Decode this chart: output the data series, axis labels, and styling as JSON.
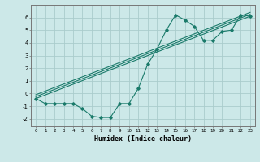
{
  "bg_color": "#cce8e8",
  "grid_color": "#aacccc",
  "line_color": "#1a7a6a",
  "xlabel": "Humidex (Indice chaleur)",
  "ylabel_ticks": [
    -2,
    -1,
    0,
    1,
    2,
    3,
    4,
    5,
    6
  ],
  "xlim": [
    -0.5,
    23.5
  ],
  "ylim": [
    -2.6,
    7.0
  ],
  "xticks": [
    0,
    1,
    2,
    3,
    4,
    5,
    6,
    7,
    8,
    9,
    10,
    11,
    12,
    13,
    14,
    15,
    16,
    17,
    18,
    19,
    20,
    21,
    22,
    23
  ],
  "series": [
    [
      0,
      -0.4
    ],
    [
      1,
      -0.8
    ],
    [
      2,
      -0.8
    ],
    [
      3,
      -0.8
    ],
    [
      4,
      -0.8
    ],
    [
      5,
      -1.2
    ],
    [
      6,
      -1.8
    ],
    [
      7,
      -1.9
    ],
    [
      8,
      -1.9
    ],
    [
      9,
      -0.8
    ],
    [
      10,
      -0.8
    ],
    [
      11,
      0.4
    ],
    [
      12,
      2.3
    ],
    [
      13,
      3.5
    ],
    [
      14,
      5.0
    ],
    [
      15,
      6.2
    ],
    [
      16,
      5.8
    ],
    [
      17,
      5.3
    ],
    [
      18,
      4.2
    ],
    [
      19,
      4.2
    ],
    [
      20,
      4.9
    ],
    [
      21,
      5.0
    ],
    [
      22,
      6.2
    ],
    [
      23,
      6.1
    ]
  ],
  "straight_lines": [
    [
      [
        0,
        -0.4
      ],
      [
        23,
        6.1
      ]
    ],
    [
      [
        0,
        -0.4
      ],
      [
        23,
        6.1
      ]
    ],
    [
      [
        0,
        -0.4
      ],
      [
        23,
        6.1
      ]
    ]
  ]
}
